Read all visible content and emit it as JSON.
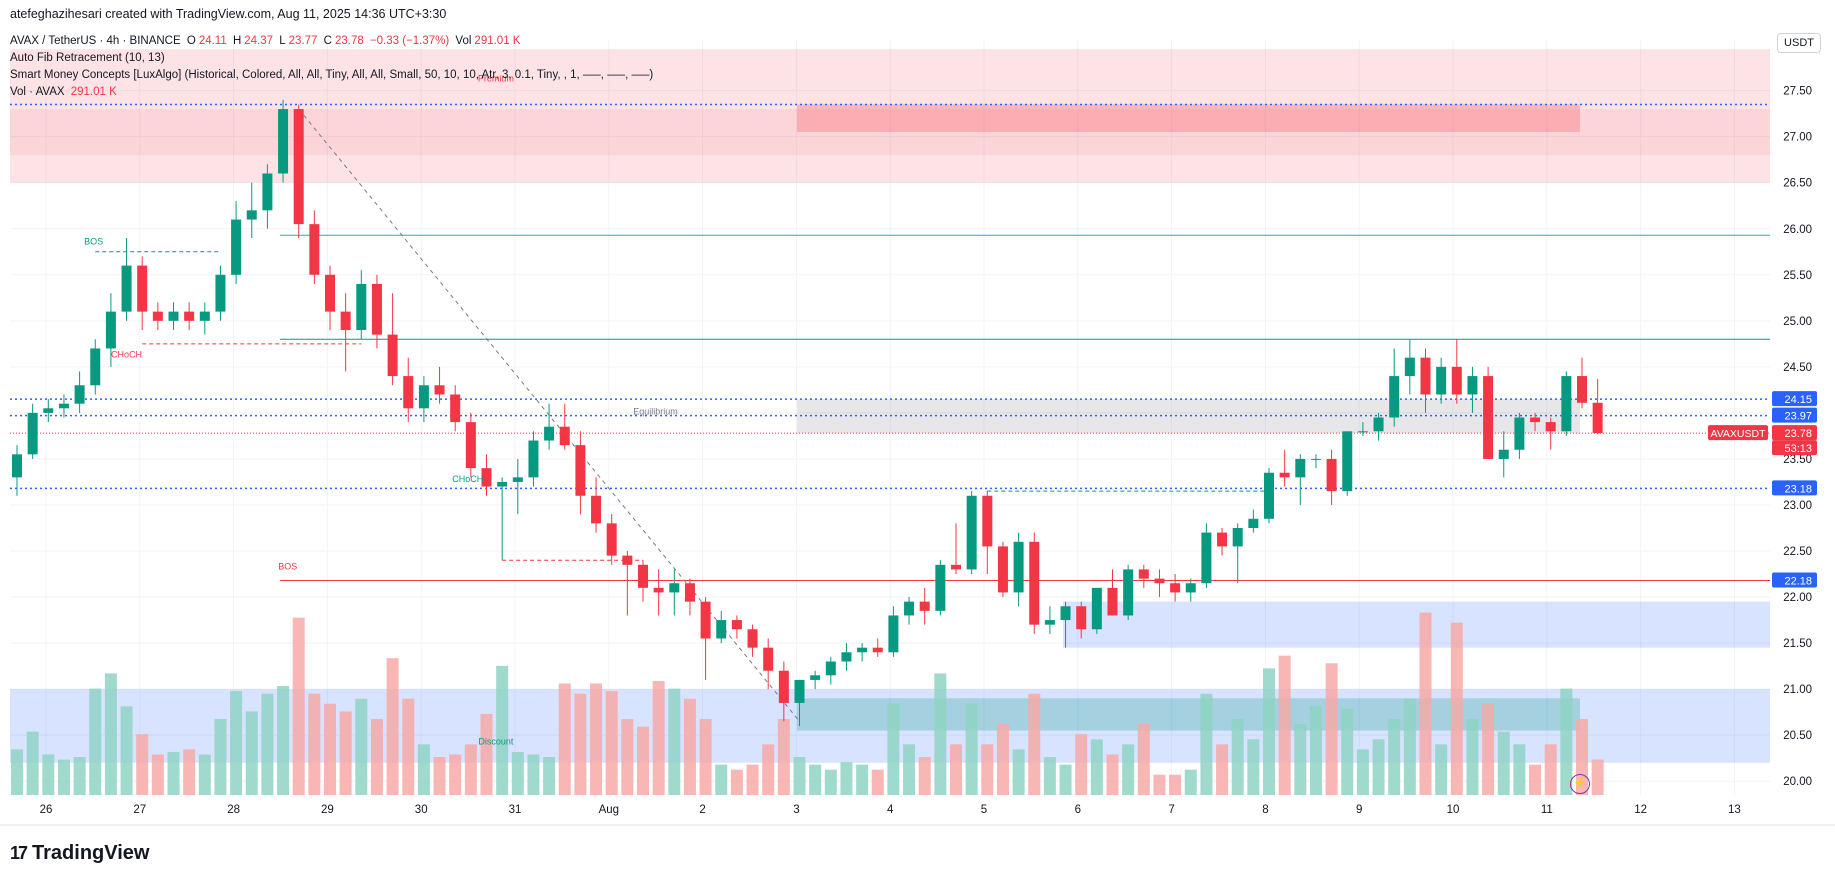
{
  "header": {
    "credit": "atefeghazihesari created with TradingView.com, Aug 11, 2025 14:36 UTC+3:30",
    "symbol_line": "AVAX / TetherUS · 4h · BINANCE",
    "o_label": "O",
    "o_value": "24.11",
    "h_label": "H",
    "h_value": "24.37",
    "l_label": "L",
    "l_value": "23.77",
    "c_label": "C",
    "c_value": "23.78",
    "change": "−0.33 (−1.37%)",
    "vol_label": "Vol",
    "vol_value": "291.01 K",
    "indicator_1": "Auto Fib Retracement (10, 13)",
    "indicator_2": "Smart Money Concepts [LuxAlgo] (Historical, Colored, All, All, Tiny, All, All, Small, 50, 10, 10, Atr, 3, 0.1, Tiny, , 1, —–, —–, —–)",
    "indicator_3_label": "Vol · AVAX",
    "indicator_3_value": "291.01 K"
  },
  "currency_button": "USDT",
  "logo_text": "TradingView",
  "colors": {
    "up": "#089981",
    "down": "#f23645",
    "fib_blue": "#2962ff",
    "up_vol": "#8fd3c4",
    "down_vol": "#f7a9a7"
  },
  "chart_data": {
    "type": "candlestick",
    "timeframe": "4h",
    "ylim": [
      19.85,
      28.05
    ],
    "y_ticks": [
      "20.00",
      "20.50",
      "21.00",
      "21.50",
      "22.00",
      "22.50",
      "23.00",
      "23.50",
      "24.00",
      "24.50",
      "25.00",
      "25.50",
      "26.00",
      "26.50",
      "27.00",
      "27.50"
    ],
    "x_ticks": [
      "26",
      "27",
      "28",
      "29",
      "30",
      "31",
      "Aug",
      "2",
      "3",
      "4",
      "5",
      "6",
      "7",
      "8",
      "9",
      "10",
      "11",
      "12",
      "13"
    ],
    "price_labels": [
      {
        "text": "24.15",
        "value": 24.15,
        "color": "#2962ff"
      },
      {
        "text": "23.97",
        "value": 23.97,
        "color": "#2962ff"
      },
      {
        "text": "AVAXUSDT",
        "value": 23.78,
        "color": "#f23645"
      },
      {
        "text": "23.78",
        "value": 23.78,
        "color": "#f23645"
      },
      {
        "text": "53:13",
        "value": 23.78,
        "color": "#f23645"
      },
      {
        "text": "23.18",
        "value": 23.18,
        "color": "#2962ff"
      },
      {
        "text": "22.18",
        "value": 22.18,
        "color": "#2962ff"
      }
    ],
    "annotations": [
      {
        "text": "Premium",
        "x": 30.6,
        "y": 27.6,
        "color": "#f23645"
      },
      {
        "text": "Equilibrium",
        "x": 40.8,
        "y": 23.98,
        "color": "#787b86"
      },
      {
        "text": "Discount",
        "x": 30.6,
        "y": 20.4,
        "color": "#089981"
      },
      {
        "text": "BOS",
        "x": 4.9,
        "y": 25.83,
        "color": "#089981"
      },
      {
        "text": "CHoCH",
        "x": 7.0,
        "y": 24.6,
        "color": "#f23645"
      },
      {
        "text": "BOS",
        "x": 17.3,
        "y": 22.3,
        "color": "#f23645"
      },
      {
        "text": "CHoCH",
        "x": 28.8,
        "y": 23.25,
        "color": "#089981"
      }
    ],
    "candles": [
      {
        "o": 23.3,
        "h": 23.65,
        "l": 23.1,
        "c": 23.55,
        "v": 18
      },
      {
        "o": 23.55,
        "h": 24.1,
        "l": 23.5,
        "c": 24.0,
        "v": 25
      },
      {
        "o": 24.0,
        "h": 24.15,
        "l": 23.9,
        "c": 24.05,
        "v": 16
      },
      {
        "o": 24.05,
        "h": 24.2,
        "l": 23.95,
        "c": 24.1,
        "v": 14
      },
      {
        "o": 24.1,
        "h": 24.45,
        "l": 24.0,
        "c": 24.3,
        "v": 15
      },
      {
        "o": 24.3,
        "h": 24.8,
        "l": 24.2,
        "c": 24.7,
        "v": 42
      },
      {
        "o": 24.7,
        "h": 25.3,
        "l": 24.5,
        "c": 25.1,
        "v": 48
      },
      {
        "o": 25.1,
        "h": 25.9,
        "l": 25.0,
        "c": 25.6,
        "v": 35
      },
      {
        "o": 25.6,
        "h": 25.7,
        "l": 24.9,
        "c": 25.1,
        "v": 24
      },
      {
        "o": 25.1,
        "h": 25.2,
        "l": 24.9,
        "c": 25.0,
        "v": 16
      },
      {
        "o": 25.0,
        "h": 25.2,
        "l": 24.9,
        "c": 25.1,
        "v": 17
      },
      {
        "o": 25.1,
        "h": 25.2,
        "l": 24.9,
        "c": 25.0,
        "v": 18
      },
      {
        "o": 25.0,
        "h": 25.2,
        "l": 24.85,
        "c": 25.1,
        "v": 16
      },
      {
        "o": 25.1,
        "h": 25.6,
        "l": 25.0,
        "c": 25.5,
        "v": 30
      },
      {
        "o": 25.5,
        "h": 26.3,
        "l": 25.4,
        "c": 26.1,
        "v": 41
      },
      {
        "o": 26.1,
        "h": 26.5,
        "l": 25.9,
        "c": 26.2,
        "v": 33
      },
      {
        "o": 26.2,
        "h": 26.7,
        "l": 26.0,
        "c": 26.6,
        "v": 40
      },
      {
        "o": 26.6,
        "h": 27.4,
        "l": 26.5,
        "c": 27.3,
        "v": 43
      },
      {
        "o": 27.3,
        "h": 27.35,
        "l": 25.9,
        "c": 26.05,
        "v": 70
      },
      {
        "o": 26.05,
        "h": 26.2,
        "l": 25.4,
        "c": 25.5,
        "v": 40
      },
      {
        "o": 25.5,
        "h": 25.6,
        "l": 24.9,
        "c": 25.1,
        "v": 36
      },
      {
        "o": 25.1,
        "h": 25.3,
        "l": 24.45,
        "c": 24.9,
        "v": 33
      },
      {
        "o": 24.9,
        "h": 25.55,
        "l": 24.8,
        "c": 25.4,
        "v": 38
      },
      {
        "o": 25.4,
        "h": 25.5,
        "l": 24.7,
        "c": 24.85,
        "v": 30
      },
      {
        "o": 24.85,
        "h": 25.3,
        "l": 24.3,
        "c": 24.4,
        "v": 54
      },
      {
        "o": 24.4,
        "h": 24.6,
        "l": 23.9,
        "c": 24.05,
        "v": 38
      },
      {
        "o": 24.05,
        "h": 24.4,
        "l": 23.9,
        "c": 24.3,
        "v": 20
      },
      {
        "o": 24.3,
        "h": 24.5,
        "l": 24.1,
        "c": 24.2,
        "v": 15
      },
      {
        "o": 24.2,
        "h": 24.3,
        "l": 23.8,
        "c": 23.9,
        "v": 16
      },
      {
        "o": 23.9,
        "h": 24.0,
        "l": 23.3,
        "c": 23.4,
        "v": 20
      },
      {
        "o": 23.4,
        "h": 23.55,
        "l": 23.1,
        "c": 23.2,
        "v": 32
      },
      {
        "o": 23.2,
        "h": 23.3,
        "l": 22.4,
        "c": 23.25,
        "v": 51
      },
      {
        "o": 23.25,
        "h": 23.5,
        "l": 22.9,
        "c": 23.3,
        "v": 17
      },
      {
        "o": 23.3,
        "h": 23.8,
        "l": 23.2,
        "c": 23.7,
        "v": 16
      },
      {
        "o": 23.7,
        "h": 24.1,
        "l": 23.6,
        "c": 23.85,
        "v": 15
      },
      {
        "o": 23.85,
        "h": 24.1,
        "l": 23.6,
        "c": 23.65,
        "v": 44
      },
      {
        "o": 23.65,
        "h": 23.8,
        "l": 22.9,
        "c": 23.1,
        "v": 40
      },
      {
        "o": 23.1,
        "h": 23.3,
        "l": 22.7,
        "c": 22.8,
        "v": 44
      },
      {
        "o": 22.8,
        "h": 22.9,
        "l": 22.35,
        "c": 22.45,
        "v": 41
      },
      {
        "o": 22.45,
        "h": 22.5,
        "l": 21.8,
        "c": 22.35,
        "v": 30
      },
      {
        "o": 22.35,
        "h": 22.4,
        "l": 21.95,
        "c": 22.1,
        "v": 27
      },
      {
        "o": 22.1,
        "h": 22.3,
        "l": 21.8,
        "c": 22.05,
        "v": 45
      },
      {
        "o": 22.05,
        "h": 22.3,
        "l": 21.8,
        "c": 22.15,
        "v": 42
      },
      {
        "o": 22.15,
        "h": 22.2,
        "l": 21.8,
        "c": 21.95,
        "v": 38
      },
      {
        "o": 21.95,
        "h": 22.0,
        "l": 21.1,
        "c": 21.55,
        "v": 30
      },
      {
        "o": 21.55,
        "h": 21.85,
        "l": 21.5,
        "c": 21.75,
        "v": 12
      },
      {
        "o": 21.75,
        "h": 21.8,
        "l": 21.55,
        "c": 21.65,
        "v": 10
      },
      {
        "o": 21.65,
        "h": 21.7,
        "l": 21.35,
        "c": 21.45,
        "v": 12
      },
      {
        "o": 21.45,
        "h": 21.55,
        "l": 21.0,
        "c": 21.2,
        "v": 20
      },
      {
        "o": 21.2,
        "h": 21.3,
        "l": 20.65,
        "c": 20.85,
        "v": 30
      },
      {
        "o": 20.85,
        "h": 21.1,
        "l": 20.6,
        "c": 21.1,
        "v": 15
      },
      {
        "o": 21.1,
        "h": 21.2,
        "l": 21.0,
        "c": 21.15,
        "v": 12
      },
      {
        "o": 21.15,
        "h": 21.35,
        "l": 21.05,
        "c": 21.3,
        "v": 10
      },
      {
        "o": 21.3,
        "h": 21.5,
        "l": 21.2,
        "c": 21.4,
        "v": 13
      },
      {
        "o": 21.4,
        "h": 21.5,
        "l": 21.3,
        "c": 21.45,
        "v": 12
      },
      {
        "o": 21.45,
        "h": 21.55,
        "l": 21.35,
        "c": 21.4,
        "v": 10
      },
      {
        "o": 21.4,
        "h": 21.9,
        "l": 21.35,
        "c": 21.8,
        "v": 36
      },
      {
        "o": 21.8,
        "h": 22.0,
        "l": 21.7,
        "c": 21.95,
        "v": 20
      },
      {
        "o": 21.95,
        "h": 22.1,
        "l": 21.7,
        "c": 21.85,
        "v": 15
      },
      {
        "o": 21.85,
        "h": 22.4,
        "l": 21.8,
        "c": 22.35,
        "v": 48
      },
      {
        "o": 22.35,
        "h": 22.8,
        "l": 22.25,
        "c": 22.3,
        "v": 20
      },
      {
        "o": 22.3,
        "h": 23.15,
        "l": 22.25,
        "c": 23.1,
        "v": 36
      },
      {
        "o": 23.1,
        "h": 23.15,
        "l": 22.25,
        "c": 22.55,
        "v": 20
      },
      {
        "o": 22.55,
        "h": 22.6,
        "l": 22.0,
        "c": 22.05,
        "v": 28
      },
      {
        "o": 22.05,
        "h": 22.7,
        "l": 21.9,
        "c": 22.6,
        "v": 18
      },
      {
        "o": 22.6,
        "h": 22.7,
        "l": 21.6,
        "c": 21.7,
        "v": 40
      },
      {
        "o": 21.7,
        "h": 21.9,
        "l": 21.6,
        "c": 21.75,
        "v": 15
      },
      {
        "o": 21.75,
        "h": 21.95,
        "l": 21.45,
        "c": 21.9,
        "v": 12
      },
      {
        "o": 21.9,
        "h": 21.95,
        "l": 21.55,
        "c": 21.65,
        "v": 24
      },
      {
        "o": 21.65,
        "h": 22.1,
        "l": 21.6,
        "c": 22.1,
        "v": 22
      },
      {
        "o": 22.1,
        "h": 22.3,
        "l": 21.8,
        "c": 21.8,
        "v": 16
      },
      {
        "o": 21.8,
        "h": 22.35,
        "l": 21.75,
        "c": 22.3,
        "v": 20
      },
      {
        "o": 22.3,
        "h": 22.35,
        "l": 22.1,
        "c": 22.2,
        "v": 28
      },
      {
        "o": 22.2,
        "h": 22.3,
        "l": 22.0,
        "c": 22.15,
        "v": 8
      },
      {
        "o": 22.15,
        "h": 22.25,
        "l": 21.95,
        "c": 22.05,
        "v": 8
      },
      {
        "o": 22.05,
        "h": 22.2,
        "l": 21.95,
        "c": 22.15,
        "v": 10
      },
      {
        "o": 22.15,
        "h": 22.8,
        "l": 22.1,
        "c": 22.7,
        "v": 40
      },
      {
        "o": 22.7,
        "h": 22.75,
        "l": 22.45,
        "c": 22.55,
        "v": 20
      },
      {
        "o": 22.55,
        "h": 22.8,
        "l": 22.15,
        "c": 22.75,
        "v": 30
      },
      {
        "o": 22.75,
        "h": 22.95,
        "l": 22.7,
        "c": 22.85,
        "v": 22
      },
      {
        "o": 22.85,
        "h": 23.4,
        "l": 22.8,
        "c": 23.35,
        "v": 50
      },
      {
        "o": 23.35,
        "h": 23.6,
        "l": 23.2,
        "c": 23.3,
        "v": 55
      },
      {
        "o": 23.3,
        "h": 23.55,
        "l": 23.0,
        "c": 23.5,
        "v": 28
      },
      {
        "o": 23.5,
        "h": 23.55,
        "l": 23.4,
        "c": 23.5,
        "v": 35
      },
      {
        "o": 23.5,
        "h": 23.6,
        "l": 23.0,
        "c": 23.15,
        "v": 52
      },
      {
        "o": 23.15,
        "h": 23.8,
        "l": 23.1,
        "c": 23.8,
        "v": 34
      },
      {
        "o": 23.8,
        "h": 23.9,
        "l": 23.75,
        "c": 23.8,
        "v": 18
      },
      {
        "o": 23.8,
        "h": 24.0,
        "l": 23.7,
        "c": 23.95,
        "v": 22
      },
      {
        "o": 23.95,
        "h": 24.7,
        "l": 23.85,
        "c": 24.4,
        "v": 30
      },
      {
        "o": 24.4,
        "h": 24.8,
        "l": 24.2,
        "c": 24.6,
        "v": 38
      },
      {
        "o": 24.6,
        "h": 24.7,
        "l": 24.0,
        "c": 24.2,
        "v": 72
      },
      {
        "o": 24.2,
        "h": 24.6,
        "l": 24.1,
        "c": 24.5,
        "v": 20
      },
      {
        "o": 24.5,
        "h": 24.8,
        "l": 24.1,
        "c": 24.2,
        "v": 68
      },
      {
        "o": 24.2,
        "h": 24.5,
        "l": 24.0,
        "c": 24.4,
        "v": 30
      },
      {
        "o": 24.4,
        "h": 24.5,
        "l": 23.5,
        "c": 23.5,
        "v": 36
      },
      {
        "o": 23.5,
        "h": 23.8,
        "l": 23.3,
        "c": 23.6,
        "v": 25
      },
      {
        "o": 23.6,
        "h": 24.0,
        "l": 23.5,
        "c": 23.95,
        "v": 20
      },
      {
        "o": 23.95,
        "h": 24.0,
        "l": 23.8,
        "c": 23.9,
        "v": 12
      },
      {
        "o": 23.9,
        "h": 23.95,
        "l": 23.6,
        "c": 23.8,
        "v": 20
      },
      {
        "o": 23.8,
        "h": 24.45,
        "l": 23.75,
        "c": 24.4,
        "v": 42
      },
      {
        "o": 24.4,
        "h": 24.6,
        "l": 24.05,
        "c": 24.11,
        "v": 30
      },
      {
        "o": 24.11,
        "h": 24.37,
        "l": 23.77,
        "c": 23.78,
        "v": 14
      }
    ],
    "levels": [
      {
        "value": 27.35,
        "color": "#2962ff"
      },
      {
        "value": 25.93,
        "color": "#00bcd4"
      },
      {
        "value": 24.8,
        "color": "#089981"
      },
      {
        "value": 24.15,
        "color": "#2962ff"
      },
      {
        "value": 23.97,
        "color": "#2962ff"
      },
      {
        "value": 23.18,
        "color": "#2962ff"
      },
      {
        "value": 22.18,
        "color": "#f23645"
      }
    ]
  }
}
